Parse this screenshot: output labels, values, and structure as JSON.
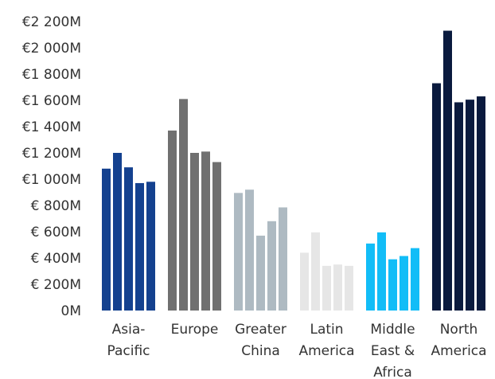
{
  "chart_data": {
    "type": "bar",
    "categories": [
      {
        "lines": [
          "Asia-",
          "Pacific"
        ],
        "color": "#14418f",
        "values": [
          1080,
          1200,
          1090,
          970,
          980
        ]
      },
      {
        "lines": [
          "Europe"
        ],
        "color": "#707070",
        "values": [
          1370,
          1610,
          1200,
          1210,
          1130
        ]
      },
      {
        "lines": [
          "Greater",
          "China"
        ],
        "color": "#aebac2",
        "values": [
          895,
          920,
          570,
          680,
          785
        ]
      },
      {
        "lines": [
          "Latin",
          "America"
        ],
        "color": "#e6e6e6",
        "values": [
          440,
          595,
          340,
          350,
          340
        ]
      },
      {
        "lines": [
          "Middle",
          "East &",
          "Africa"
        ],
        "color": "#12bdf7",
        "values": [
          510,
          595,
          390,
          415,
          475
        ]
      },
      {
        "lines": [
          "North",
          "America"
        ],
        "color": "#0a1a3e",
        "values": [
          1730,
          2130,
          1585,
          1605,
          1630
        ]
      }
    ],
    "y_ticks": [
      "0M",
      "€ 200M",
      "€ 400M",
      "€ 600M",
      "€ 800M",
      "€1 000M",
      "€1 200M",
      "€1 400M",
      "€1 600M",
      "€1 800M",
      "€2 000M",
      "€2 200M"
    ],
    "ylim": [
      0,
      2200
    ],
    "grid": false,
    "legend": "none"
  }
}
